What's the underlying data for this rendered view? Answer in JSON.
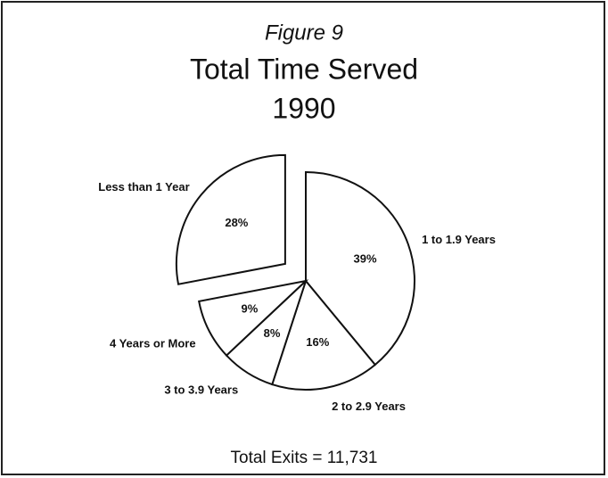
{
  "chart_data": {
    "type": "pie",
    "figure_label": "Figure 9",
    "title": "Total Time Served",
    "subtitle": "1990",
    "note": "Total Exits = 11,731",
    "categories": [
      "1 to 1.9 Years",
      "2 to 2.9 Years",
      "3 to 3.9 Years",
      "4 Years or More",
      "Less than 1 Year"
    ],
    "values": [
      39,
      16,
      8,
      9,
      28
    ],
    "value_labels": [
      "39%",
      "16%",
      "8%",
      "9%",
      "28%"
    ],
    "explode": [
      false,
      false,
      false,
      false,
      true
    ],
    "color": "#ffffff"
  }
}
